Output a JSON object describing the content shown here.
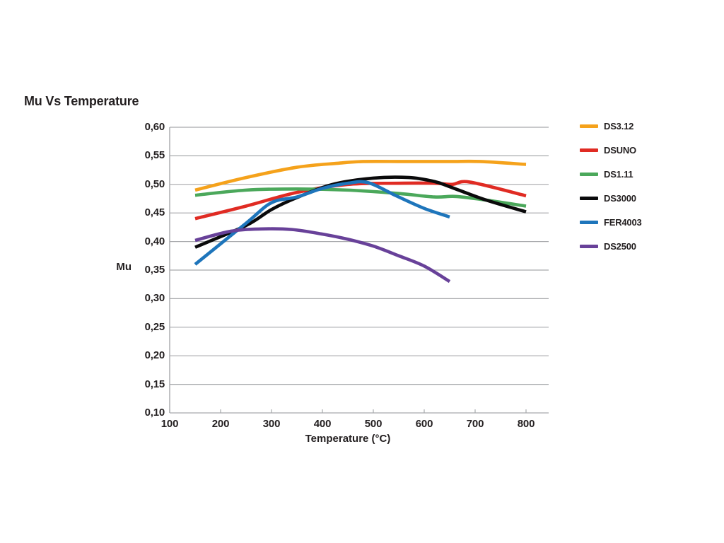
{
  "colors": {
    "text": "#231F20",
    "grid": "#A7A9AC",
    "background": "#FFFFFF"
  },
  "chart_data": {
    "type": "line",
    "title": "Mu Vs Temperature",
    "xlabel": "Temperature (°C)",
    "ylabel": "Mu",
    "xlim": [
      100,
      845
    ],
    "ylim": [
      0.1,
      0.6
    ],
    "grid": "horizontal",
    "legend_position": "right",
    "decimal_separator": "comma",
    "x_ticks": [
      100,
      200,
      300,
      400,
      500,
      600,
      700,
      800
    ],
    "y_ticks": [
      0.6,
      0.55,
      0.5,
      0.45,
      0.4,
      0.35,
      0.3,
      0.25,
      0.2,
      0.15,
      0.1
    ],
    "y_tick_labels": [
      "0,60",
      "0,55",
      "0,50",
      "0,45",
      "0,40",
      "0,35",
      "0,30",
      "0,25",
      "0,20",
      "0,15",
      "0,10"
    ],
    "series": [
      {
        "name": "DS3.12",
        "color": "#F5A21B",
        "points": [
          [
            150,
            0.49
          ],
          [
            250,
            0.512
          ],
          [
            350,
            0.53
          ],
          [
            430,
            0.537
          ],
          [
            480,
            0.54
          ],
          [
            560,
            0.54
          ],
          [
            650,
            0.54
          ],
          [
            710,
            0.54
          ],
          [
            800,
            0.535
          ]
        ]
      },
      {
        "name": "DSUNO",
        "color": "#E02B23",
        "points": [
          [
            150,
            0.44
          ],
          [
            250,
            0.462
          ],
          [
            350,
            0.486
          ],
          [
            450,
            0.5
          ],
          [
            550,
            0.502
          ],
          [
            620,
            0.502
          ],
          [
            655,
            0.5
          ],
          [
            690,
            0.504
          ],
          [
            800,
            0.48
          ]
        ]
      },
      {
        "name": "DS1.11",
        "color": "#4BA85B",
        "points": [
          [
            150,
            0.481
          ],
          [
            250,
            0.49
          ],
          [
            350,
            0.492
          ],
          [
            450,
            0.49
          ],
          [
            550,
            0.484
          ],
          [
            620,
            0.478
          ],
          [
            660,
            0.479
          ],
          [
            710,
            0.474
          ],
          [
            800,
            0.462
          ]
        ]
      },
      {
        "name": "DS3000",
        "color": "#0A0A0B",
        "points": [
          [
            150,
            0.39
          ],
          [
            250,
            0.428
          ],
          [
            300,
            0.456
          ],
          [
            350,
            0.477
          ],
          [
            420,
            0.5
          ],
          [
            500,
            0.511
          ],
          [
            570,
            0.512
          ],
          [
            620,
            0.505
          ],
          [
            650,
            0.496
          ],
          [
            720,
            0.473
          ],
          [
            800,
            0.452
          ]
        ]
      },
      {
        "name": "FER4003",
        "color": "#1E75BB",
        "points": [
          [
            150,
            0.36
          ],
          [
            250,
            0.432
          ],
          [
            300,
            0.468
          ],
          [
            350,
            0.478
          ],
          [
            400,
            0.493
          ],
          [
            450,
            0.502
          ],
          [
            490,
            0.503
          ],
          [
            545,
            0.48
          ],
          [
            600,
            0.458
          ],
          [
            650,
            0.443
          ]
        ]
      },
      {
        "name": "DS2500",
        "color": "#684199",
        "points": [
          [
            150,
            0.402
          ],
          [
            220,
            0.418
          ],
          [
            280,
            0.422
          ],
          [
            340,
            0.421
          ],
          [
            400,
            0.413
          ],
          [
            450,
            0.404
          ],
          [
            500,
            0.392
          ],
          [
            550,
            0.375
          ],
          [
            600,
            0.357
          ],
          [
            650,
            0.33
          ]
        ]
      }
    ]
  }
}
